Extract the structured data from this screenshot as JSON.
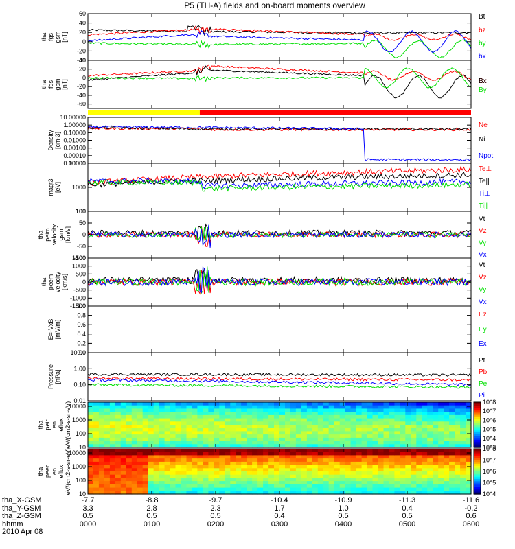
{
  "title": "P5 (TH-A) fields and on-board moments overview",
  "colors": {
    "black": "#000000",
    "red": "#ff0000",
    "green": "#00e000",
    "blue": "#0000ff",
    "yellow": "#ffff00"
  },
  "chart_data": [
    {
      "id": "fgs-gsm",
      "type": "line",
      "ylabel": "tha fgs gsm [nT]",
      "ylim": [
        -40,
        60
      ],
      "yticks": [
        "60",
        "40",
        "20",
        "0",
        "-20",
        "-40"
      ],
      "ytick_values": [
        60,
        40,
        20,
        0,
        -20,
        -40
      ],
      "series": [
        {
          "name": "Bt",
          "color": "#000000"
        },
        {
          "name": "bz",
          "color": "#ff0000"
        },
        {
          "name": "by",
          "color": "#00e000"
        },
        {
          "name": "bx",
          "color": "#0000ff"
        }
      ]
    },
    {
      "id": "fgs-gsm-2",
      "type": "line",
      "ylabel": "tha fgs gsm [nT]",
      "ylim": [
        -70,
        40
      ],
      "yticks": [
        "40",
        "20",
        "0",
        "-20",
        "-40",
        "-60"
      ],
      "ytick_values": [
        40,
        20,
        0,
        -20,
        -40,
        -60
      ],
      "series": [
        {
          "name": "Bx",
          "color": "#ff0000"
        },
        {
          "name": "Bx",
          "color": "#000000"
        },
        {
          "name": "By",
          "color": "#00e000"
        }
      ]
    },
    {
      "id": "mode-bar",
      "type": "bar",
      "segments": [
        {
          "color": "#ffff00",
          "from": 0,
          "to": 0.292
        },
        {
          "color": "#ff0000",
          "from": 0.292,
          "to": 1
        }
      ]
    },
    {
      "id": "density",
      "type": "line",
      "ylabel": "Density [cm-3]",
      "yscale": "log",
      "ylim": [
        1e-05,
        10
      ],
      "yticks": [
        "10.00000",
        "1.00000",
        "0.10000",
        "0.01000",
        "0.00100",
        "0.00010",
        "0.00001"
      ],
      "series": [
        {
          "name": "Ne",
          "color": "#ff0000"
        },
        {
          "name": "Ni",
          "color": "#000000"
        },
        {
          "name": "Npot",
          "color": "#0000ff"
        }
      ]
    },
    {
      "id": "magt3",
      "type": "line",
      "ylabel": "magt3 [eV]",
      "yscale": "log",
      "ylim": [
        100,
        10000
      ],
      "yticks": [
        "10000",
        "1000",
        "100"
      ],
      "series": [
        {
          "name": "Te⊥",
          "color": "#ff0000"
        },
        {
          "name": "Te||",
          "color": "#000000"
        },
        {
          "name": "Ti⊥",
          "color": "#0000ff"
        },
        {
          "name": "Ti||",
          "color": "#00e000"
        }
      ]
    },
    {
      "id": "peim-velocity",
      "type": "line",
      "ylabel": "tha peim velocity gsm [km/s]",
      "ylim": [
        -100,
        100
      ],
      "yticks": [
        "100",
        "50",
        "0",
        "-50",
        "-100"
      ],
      "ytick_values": [
        100,
        50,
        0,
        -50,
        -100
      ],
      "series": [
        {
          "name": "Vt",
          "color": "#000000"
        },
        {
          "name": "Vz",
          "color": "#ff0000"
        },
        {
          "name": "Vy",
          "color": "#00e000"
        },
        {
          "name": "Vx",
          "color": "#0000ff"
        }
      ]
    },
    {
      "id": "peem-velocity",
      "type": "line",
      "ylabel": "tha peem velocity [km/s]",
      "ylim": [
        -1500,
        1500
      ],
      "yticks": [
        "1500",
        "1000",
        "500",
        "0",
        "-500",
        "-1000",
        "-1500"
      ],
      "ytick_values": [
        1500,
        1000,
        500,
        0,
        -500,
        -1000,
        -1500
      ],
      "series": [
        {
          "name": "Vt",
          "color": "#000000"
        },
        {
          "name": "Vz",
          "color": "#ff0000"
        },
        {
          "name": "Vy",
          "color": "#00e000"
        },
        {
          "name": "Vx",
          "color": "#0000ff"
        }
      ]
    },
    {
      "id": "e-field",
      "type": "line",
      "ylabel": "E=-VxB [mV/m]",
      "ylim": [
        0,
        1
      ],
      "yticks": [
        "1.0",
        "0.8",
        "0.6",
        "0.4",
        "0.2",
        "0.0"
      ],
      "ytick_values": [
        1,
        0.8,
        0.6,
        0.4,
        0.2,
        0
      ],
      "series": [
        {
          "name": "Ez",
          "color": "#ff0000"
        },
        {
          "name": "Ey",
          "color": "#00e000"
        },
        {
          "name": "Ex",
          "color": "#0000ff"
        }
      ]
    },
    {
      "id": "pressure",
      "type": "line",
      "ylabel": "Pressure [nPa]",
      "yscale": "log",
      "ylim": [
        0.01,
        10
      ],
      "yticks": [
        "10.00",
        "1.00",
        "0.10",
        "0.01"
      ],
      "series": [
        {
          "name": "Pt",
          "color": "#000000"
        },
        {
          "name": "Pb",
          "color": "#ff0000"
        },
        {
          "name": "Pe",
          "color": "#00e000"
        },
        {
          "name": "Pi",
          "color": "#0000ff"
        }
      ]
    },
    {
      "id": "peir-eflux",
      "type": "heatmap",
      "ylabel": "tha peir en eflux eV/(cm2-s-sr-eV)",
      "yscale": "log",
      "ylim": [
        10,
        20000
      ],
      "yticks": [
        "10000",
        "1000",
        "100",
        "10"
      ],
      "colorbar": {
        "scale": "log",
        "ticks": [
          "10^8",
          "10^7",
          "10^6",
          "10^5",
          "10^4",
          "10^3"
        ]
      }
    },
    {
      "id": "peer-eflux",
      "type": "heatmap",
      "ylabel": "tha peer en eflux eV/(cm2-s-sr-eV)",
      "yscale": "log",
      "ylim": [
        10,
        20000
      ],
      "yticks": [
        "10000",
        "1000",
        "100",
        "10"
      ],
      "colorbar": {
        "scale": "log",
        "ticks": [
          "10^8",
          "10^7",
          "10^6",
          "10^5",
          "10^4"
        ]
      }
    }
  ],
  "footer": {
    "rows": [
      {
        "label": "tha_X-GSM",
        "values": [
          "-7.7",
          "-8.8",
          "-9.7",
          "-10.4",
          "-10.9",
          "-11.3",
          "-11.6"
        ]
      },
      {
        "label": "tha_Y-GSM",
        "values": [
          "3.3",
          "2.8",
          "2.3",
          "1.7",
          "1.0",
          "0.4",
          "-0.2"
        ]
      },
      {
        "label": "tha_Z-GSM",
        "values": [
          "0.5",
          "0.5",
          "0.5",
          "0.4",
          "0.5",
          "0.5",
          "0.6"
        ]
      },
      {
        "label": "hhmm",
        "values": [
          "0000",
          "0100",
          "0200",
          "0300",
          "0400",
          "0500",
          "0600"
        ]
      }
    ],
    "date": "2010 Apr 08"
  }
}
